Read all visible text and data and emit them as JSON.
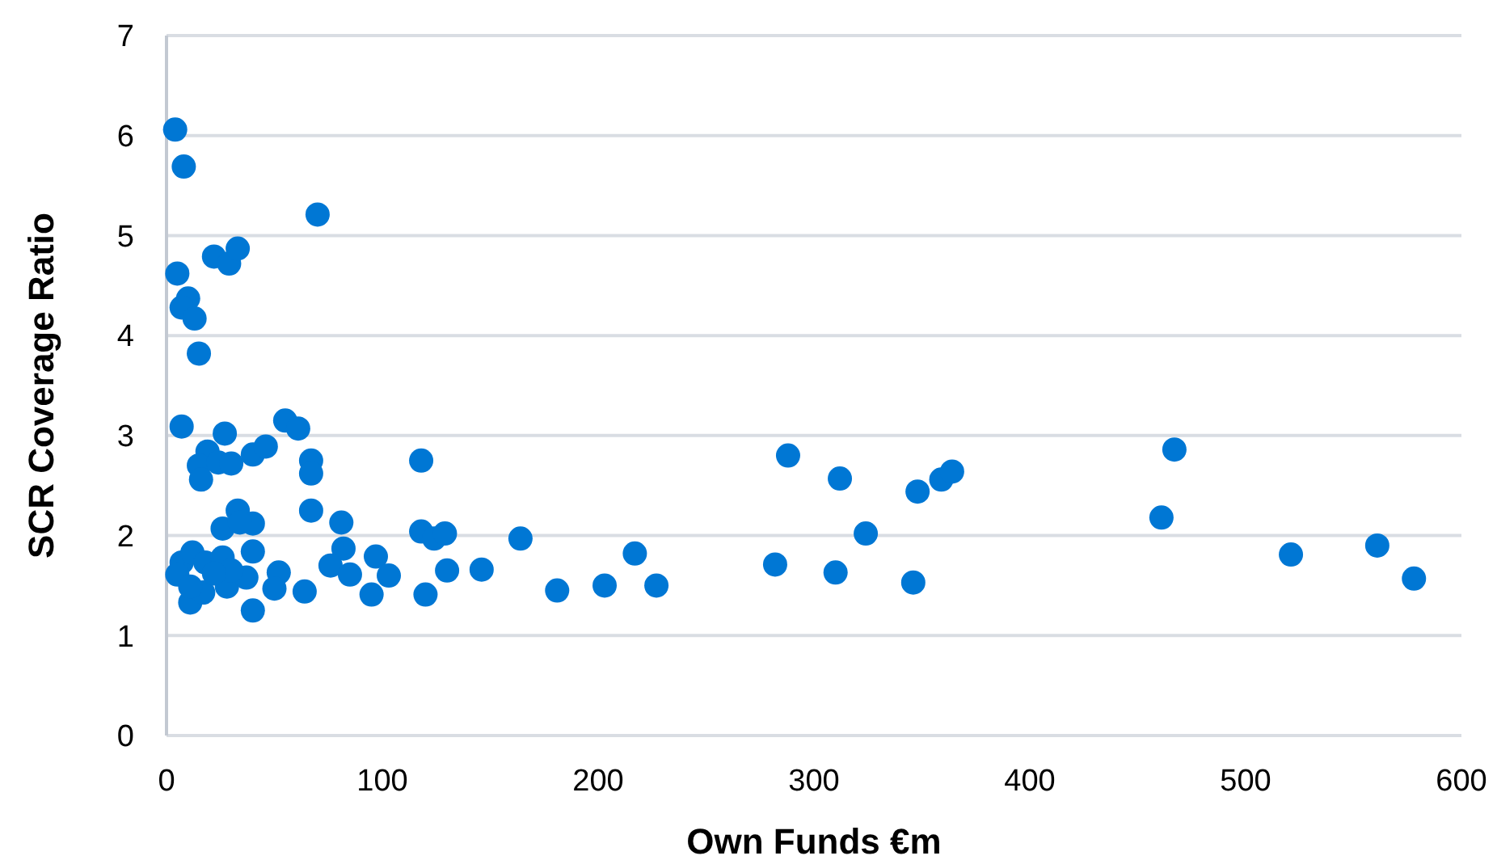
{
  "chart_data": {
    "type": "scatter",
    "xlabel": "Own Funds €m",
    "ylabel": "SCR Coverage Ratio",
    "xlim": [
      0,
      600
    ],
    "xticks": [
      0,
      100,
      200,
      300,
      400,
      500,
      600
    ],
    "ylim": [
      0,
      7
    ],
    "yticks": [
      0,
      1,
      2,
      3,
      4,
      5,
      6,
      7
    ],
    "grid": "y",
    "marker": "circle",
    "series": [
      {
        "color": "#0077d4",
        "x": [
          4,
          8,
          70,
          22,
          29,
          33,
          5,
          10,
          7,
          13,
          15,
          7,
          27,
          55,
          61,
          19,
          15,
          16,
          24,
          30,
          40,
          46,
          67,
          67,
          118,
          67,
          33,
          26,
          40,
          34,
          81,
          118,
          124,
          129,
          164,
          40,
          82,
          76,
          85,
          97,
          103,
          95,
          52,
          50,
          64,
          40,
          120,
          7,
          5,
          12,
          18,
          11,
          17,
          11,
          26,
          28,
          37,
          30,
          22,
          146,
          130,
          181,
          203,
          227,
          217,
          282,
          310,
          288,
          312,
          324,
          348,
          359,
          364,
          346,
          461,
          467,
          521,
          561,
          578
        ],
        "values": [
          6.06,
          5.69,
          5.21,
          4.79,
          4.72,
          4.87,
          4.62,
          4.37,
          4.28,
          4.17,
          3.82,
          3.09,
          3.02,
          3.15,
          3.07,
          2.84,
          2.7,
          2.56,
          2.73,
          2.72,
          2.81,
          2.89,
          2.75,
          2.62,
          2.75,
          2.25,
          2.25,
          2.07,
          2.12,
          2.13,
          2.13,
          2.04,
          1.97,
          2.02,
          1.97,
          1.84,
          1.87,
          1.7,
          1.61,
          1.79,
          1.6,
          1.41,
          1.63,
          1.47,
          1.44,
          1.25,
          1.41,
          1.73,
          1.61,
          1.83,
          1.73,
          1.33,
          1.43,
          1.49,
          1.78,
          1.49,
          1.58,
          1.65,
          1.62,
          1.66,
          1.65,
          1.45,
          1.5,
          1.5,
          1.82,
          1.71,
          1.63,
          2.8,
          2.57,
          2.02,
          2.44,
          2.56,
          2.64,
          1.53,
          2.18,
          2.86,
          1.81,
          1.9,
          1.57
        ]
      }
    ]
  }
}
